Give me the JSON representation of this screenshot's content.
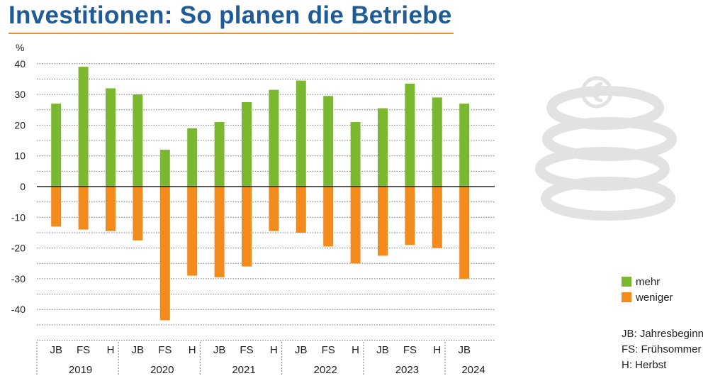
{
  "title": "Investitionen: So planen die Betriebe",
  "chart_data": {
    "type": "bar",
    "ylabel": "%",
    "ylim": [
      -50,
      40
    ],
    "yticks": [
      40,
      30,
      20,
      10,
      0,
      -10,
      -20,
      -30,
      -40
    ],
    "grid": true,
    "legend_position": "bottom-right",
    "categories": [
      "JB",
      "FS",
      "H",
      "JB",
      "FS",
      "H",
      "JB",
      "FS",
      "H",
      "JB",
      "FS",
      "H",
      "JB",
      "FS",
      "H",
      "JB"
    ],
    "groups": [
      {
        "label": "2019",
        "count": 3
      },
      {
        "label": "2020",
        "count": 3
      },
      {
        "label": "2021",
        "count": 3
      },
      {
        "label": "2022",
        "count": 3
      },
      {
        "label": "2023",
        "count": 3
      },
      {
        "label": "2024",
        "count": 1
      }
    ],
    "series": [
      {
        "name": "mehr",
        "color": "#7cb82f",
        "values": [
          27,
          39,
          32,
          30,
          12,
          19,
          21,
          27.5,
          31.5,
          34.5,
          29.5,
          21,
          25.5,
          33.5,
          29,
          27
        ]
      },
      {
        "name": "weniger",
        "color": "#f28a1c",
        "values": [
          -13,
          -14,
          -14.5,
          -17.5,
          -43.5,
          -29,
          -29.5,
          -26,
          -14.5,
          -15,
          -19.5,
          -25,
          -22.5,
          -19,
          -20,
          -30
        ]
      }
    ]
  },
  "legend": [
    {
      "label": "mehr",
      "color": "#7cb82f"
    },
    {
      "label": "weniger",
      "color": "#f28a1c"
    }
  ],
  "notes": [
    "JB: Jahresbeginn",
    "FS: Frühsommer",
    "H: Herbst"
  ]
}
